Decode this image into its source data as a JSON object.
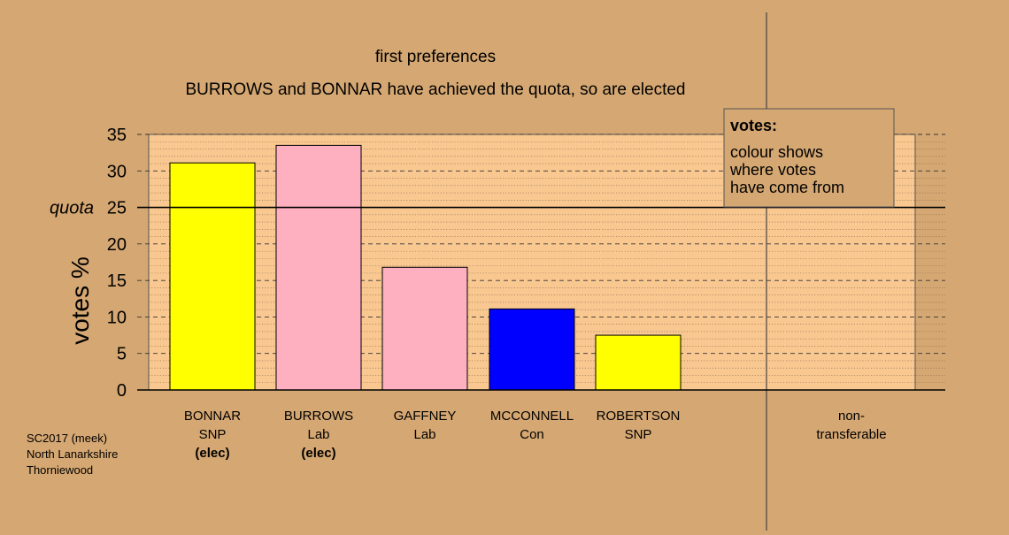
{
  "colors": {
    "background": "#D5A772",
    "plot_fill": "#F9C891",
    "SNP": "#FFFF00",
    "Lab": "#FFB0C0",
    "Con": "#0000FF"
  },
  "chart_data": {
    "type": "bar",
    "title": "first preferences",
    "subtitle": "BURROWS and BONNAR have achieved the quota, so are elected",
    "ylabel": "votes %",
    "ylim": [
      0,
      35
    ],
    "yticks": [
      "0",
      "5",
      "10",
      "15",
      "20",
      "25",
      "30",
      "35"
    ],
    "quota": {
      "label": "quota",
      "value": 25
    },
    "grid": true,
    "bars": [
      {
        "name": "BONNAR",
        "party": "SNP",
        "note": "(elec)",
        "value": 31.1,
        "color": "#FFFF00"
      },
      {
        "name": "BURROWS",
        "party": "Lab",
        "note": "(elec)",
        "value": 33.5,
        "color": "#FFB0C0"
      },
      {
        "name": "GAFFNEY",
        "party": "Lab",
        "note": "",
        "value": 16.8,
        "color": "#FFB0C0"
      },
      {
        "name": "MCCONNELL",
        "party": "Con",
        "note": "",
        "value": 11.1,
        "color": "#0000FF"
      },
      {
        "name": "ROBERTSON",
        "party": "SNP",
        "note": "",
        "value": 7.5,
        "color": "#FFFF00"
      }
    ],
    "non_transferable": {
      "label_lines": [
        "non-",
        "transferable"
      ],
      "value": 0
    },
    "legend": {
      "placement": "top-right",
      "title": "votes:",
      "lines": [
        "colour shows",
        "where votes",
        "have come from"
      ]
    },
    "footer_lines": [
      "SC2017 (meek)",
      "North Lanarkshire",
      "Thorniewood"
    ]
  }
}
